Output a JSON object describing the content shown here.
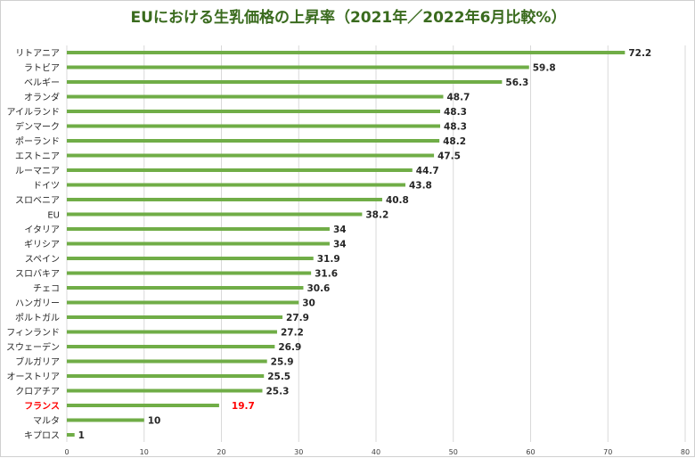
{
  "chart_data": {
    "type": "bar",
    "orientation": "horizontal",
    "title": "EUにおける生乳価格の上昇率（2021年／2022年6月比較%）",
    "categories": [
      "リトアニア",
      "ラトビア",
      "ベルギー",
      "オランダ",
      "アイルランド",
      "デンマーク",
      "ポーランド",
      "エストニア",
      "ルーマニア",
      "ドイツ",
      "スロベニア",
      "EU",
      "イタリア",
      "ギリシア",
      "スペイン",
      "スロバキア",
      "チェコ",
      "ハンガリー",
      "ポルトガル",
      "フィンランド",
      "スウェーデン",
      "ブルガリア",
      "オーストリア",
      "クロアチア",
      "フランス",
      "マルタ",
      "キプロス"
    ],
    "values": [
      72.2,
      59.8,
      56.3,
      48.7,
      48.3,
      48.3,
      48.2,
      47.5,
      44.7,
      43.8,
      40.8,
      38.2,
      34,
      34,
      31.9,
      31.6,
      30.6,
      30,
      27.9,
      27.2,
      26.9,
      25.9,
      25.5,
      25.3,
      19.7,
      10,
      1
    ],
    "highlight_category": "フランス",
    "highlight_color": "#ff0000",
    "bar_color": "#70ad47",
    "title_color": "#3a6b1e",
    "xlim": [
      0,
      80
    ],
    "xticks": [
      0,
      10,
      20,
      30,
      40,
      50,
      60,
      70,
      80
    ],
    "grid": true,
    "xlabel": "",
    "ylabel": ""
  }
}
